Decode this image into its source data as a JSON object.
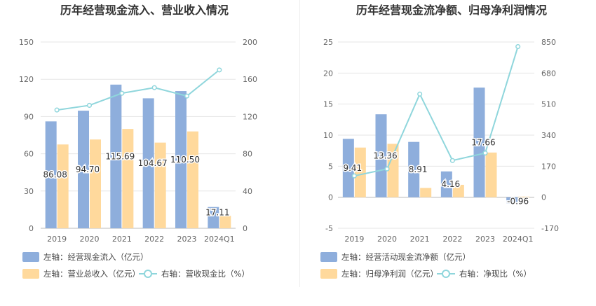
{
  "colors": {
    "bar_primary": "#8eaedc",
    "bar_secondary": "#ffd99c",
    "line": "#8fd6dc",
    "grid": "#e6e6e6",
    "tick_text": "#666666",
    "title_text": "#333333",
    "label_text": "#333333"
  },
  "chart_data": [
    {
      "type": "bar",
      "title": "历年经营现金流入、营业收入情况",
      "categories": [
        "2019",
        "2020",
        "2021",
        "2022",
        "2023",
        "2024Q1"
      ],
      "left_ticks": [
        "0",
        "30",
        "60",
        "90",
        "120",
        "150"
      ],
      "right_ticks": [
        "0",
        "40",
        "80",
        "120",
        "160",
        "200"
      ],
      "ylim_left": [
        0,
        150
      ],
      "ylim_right": [
        0,
        200
      ],
      "series": [
        {
          "name": "左轴：经营现金流入（亿元）",
          "axis": "left",
          "kind": "bar",
          "values": [
            86.08,
            94.7,
            115.69,
            104.67,
            110.5,
            17.11
          ],
          "labels": [
            "86.08",
            "94.70",
            "115.69",
            "104.67",
            "110.50",
            "17.11"
          ]
        },
        {
          "name": "左轴：营业总收入（亿元）",
          "axis": "left",
          "kind": "bar",
          "values": [
            67.5,
            71.5,
            80,
            69,
            78,
            10
          ]
        },
        {
          "name": "右轴：营收现金比（%）",
          "axis": "right",
          "kind": "line",
          "values": [
            127,
            132,
            145,
            151,
            142,
            170
          ]
        }
      ],
      "legend_rows": [
        [
          "左轴：经营现金流入（亿元）"
        ],
        [
          "左轴：营业总收入（亿元）",
          "右轴：营收现金比（%）"
        ]
      ]
    },
    {
      "type": "bar",
      "title": "历年经营现金流净额、归母净利润情况",
      "categories": [
        "2019",
        "2020",
        "2021",
        "2022",
        "2023",
        "2024Q1"
      ],
      "left_ticks": [
        "-5",
        "0",
        "5",
        "10",
        "15",
        "20",
        "25"
      ],
      "right_ticks": [
        "-170",
        "0",
        "170",
        "340",
        "510",
        "680",
        "850"
      ],
      "ylim_left": [
        -5,
        25
      ],
      "ylim_right": [
        -170,
        850
      ],
      "series": [
        {
          "name": "左轴：经营活动现金流净额（亿元）",
          "axis": "left",
          "kind": "bar",
          "values": [
            9.41,
            13.36,
            8.91,
            4.16,
            17.66,
            -0.96
          ],
          "labels": [
            "9.41",
            "13.36",
            "8.91",
            "4.16",
            "17.66",
            "-0.96"
          ]
        },
        {
          "name": "左轴：归母净利润（亿元）",
          "axis": "left",
          "kind": "bar",
          "values": [
            8.0,
            8.6,
            1.5,
            2.0,
            7.2,
            0.1
          ]
        },
        {
          "name": "右轴：净现比（%）",
          "axis": "right",
          "kind": "line",
          "values": [
            117,
            155,
            565,
            201,
            242,
            825
          ]
        }
      ],
      "legend_rows": [
        [
          "左轴：经营活动现金流净额（亿元）"
        ],
        [
          "左轴：归母净利润（亿元）",
          "右轴：净现比（%）"
        ]
      ]
    }
  ]
}
